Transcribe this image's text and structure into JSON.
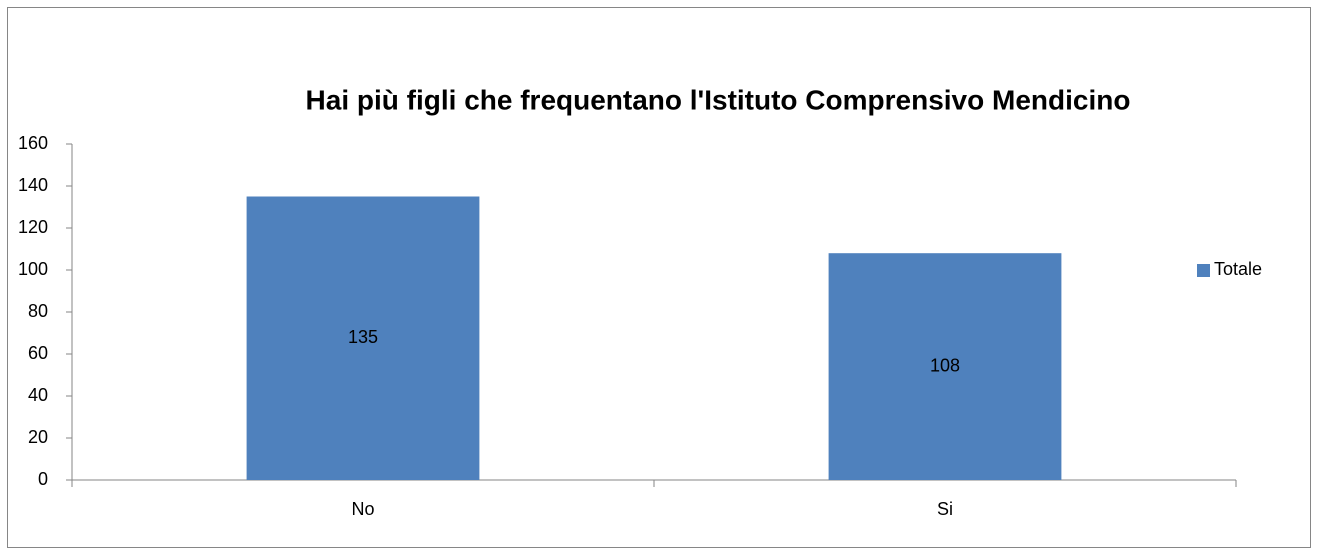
{
  "chart_data": {
    "type": "bar",
    "title": "Hai più figli che frequentano l'Istituto Comprensivo  Mendicino",
    "categories": [
      "No",
      "Si"
    ],
    "series": [
      {
        "name": "Totale",
        "color": "#4f81bd",
        "values": [
          135,
          108
        ]
      }
    ],
    "ylim": [
      0,
      160
    ],
    "yticks": [
      0,
      20,
      40,
      60,
      80,
      100,
      120,
      140,
      160
    ],
    "grid": false,
    "data_labels": true,
    "legend": "right"
  }
}
